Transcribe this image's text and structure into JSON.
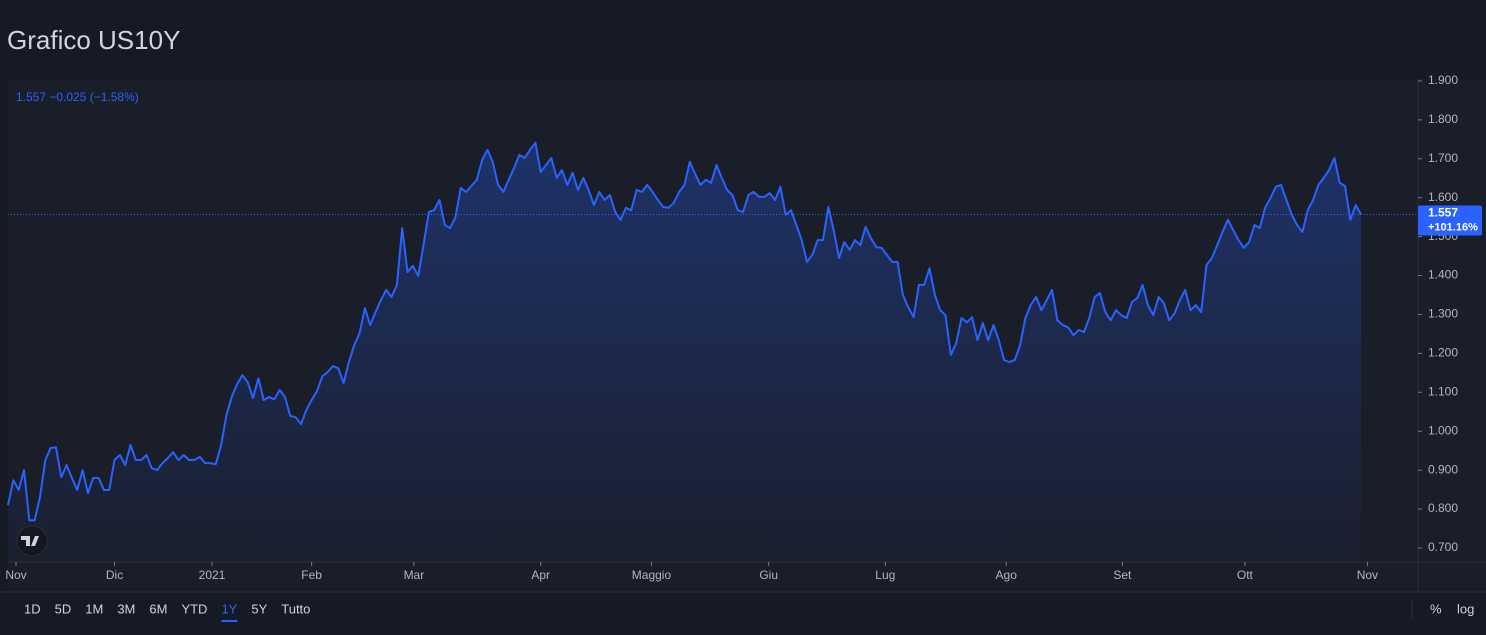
{
  "chart_data": {
    "type": "area",
    "title": "Grafico US10Y",
    "legend_text": "1.557 −0.025 (−1.58%)",
    "price_label": "1.557",
    "change_label": "+101.16%",
    "color": "#2962ff",
    "values": [
      0.81,
      0.874,
      0.849,
      0.9,
      0.771,
      0.771,
      0.831,
      0.926,
      0.957,
      0.959,
      0.882,
      0.913,
      0.88,
      0.849,
      0.9,
      0.841,
      0.88,
      0.88,
      0.849,
      0.849,
      0.926,
      0.939,
      0.913,
      0.965,
      0.926,
      0.926,
      0.939,
      0.905,
      0.9,
      0.918,
      0.931,
      0.946,
      0.926,
      0.939,
      0.926,
      0.926,
      0.934,
      0.918,
      0.918,
      0.915,
      0.964,
      1.041,
      1.088,
      1.121,
      1.144,
      1.126,
      1.085,
      1.136,
      1.08,
      1.088,
      1.082,
      1.106,
      1.088,
      1.039,
      1.036,
      1.018,
      1.054,
      1.08,
      1.103,
      1.141,
      1.152,
      1.167,
      1.162,
      1.124,
      1.178,
      1.221,
      1.252,
      1.316,
      1.273,
      1.306,
      1.337,
      1.363,
      1.345,
      1.376,
      1.522,
      1.409,
      1.425,
      1.399,
      1.478,
      1.563,
      1.568,
      1.594,
      1.53,
      1.522,
      1.55,
      1.625,
      1.615,
      1.63,
      1.646,
      1.697,
      1.723,
      1.692,
      1.633,
      1.615,
      1.646,
      1.676,
      1.71,
      1.702,
      1.723,
      1.741,
      1.666,
      1.684,
      1.702,
      1.651,
      1.671,
      1.633,
      1.664,
      1.62,
      1.651,
      1.62,
      1.581,
      1.615,
      1.594,
      1.607,
      1.563,
      1.543,
      1.574,
      1.568,
      1.62,
      1.615,
      1.633,
      1.615,
      1.594,
      1.576,
      1.574,
      1.587,
      1.615,
      1.633,
      1.692,
      1.661,
      1.633,
      1.646,
      1.638,
      1.684,
      1.651,
      1.62,
      1.607,
      1.568,
      1.563,
      1.607,
      1.615,
      1.602,
      1.602,
      1.612,
      1.594,
      1.628,
      1.556,
      1.568,
      1.53,
      1.491,
      1.435,
      1.453,
      1.491,
      1.491,
      1.576,
      1.517,
      1.445,
      1.486,
      1.466,
      1.491,
      1.478,
      1.525,
      1.496,
      1.473,
      1.471,
      1.453,
      1.435,
      1.435,
      1.35,
      1.319,
      1.293,
      1.376,
      1.376,
      1.419,
      1.35,
      1.311,
      1.298,
      1.196,
      1.226,
      1.291,
      1.28,
      1.293,
      1.234,
      1.278,
      1.234,
      1.273,
      1.234,
      1.183,
      1.178,
      1.183,
      1.221,
      1.291,
      1.324,
      1.345,
      1.311,
      1.337,
      1.363,
      1.285,
      1.273,
      1.267,
      1.247,
      1.26,
      1.255,
      1.291,
      1.345,
      1.355,
      1.306,
      1.285,
      1.311,
      1.298,
      1.291,
      1.332,
      1.342,
      1.376,
      1.324,
      1.298,
      1.345,
      1.329,
      1.285,
      1.303,
      1.337,
      1.363,
      1.311,
      1.324,
      1.306,
      1.427,
      1.445,
      1.478,
      1.512,
      1.543,
      1.517,
      1.491,
      1.471,
      1.486,
      1.53,
      1.522,
      1.574,
      1.599,
      1.628,
      1.633,
      1.594,
      1.556,
      1.53,
      1.512,
      1.568,
      1.594,
      1.633,
      1.651,
      1.671,
      1.702,
      1.638,
      1.63,
      1.543,
      1.581,
      1.557
    ],
    "xlim": [
      0,
      264.7
    ],
    "xticks": [
      {
        "value": 1.5,
        "label": "Nov"
      },
      {
        "value": 20,
        "label": "Dic"
      },
      {
        "value": 38.3,
        "label": "2021"
      },
      {
        "value": 57,
        "label": "Feb"
      },
      {
        "value": 76.2,
        "label": "Mar"
      },
      {
        "value": 100,
        "label": "Apr"
      },
      {
        "value": 120.8,
        "label": "Maggio"
      },
      {
        "value": 142.8,
        "label": "Giu"
      },
      {
        "value": 164.7,
        "label": "Lug"
      },
      {
        "value": 187.4,
        "label": "Ago"
      },
      {
        "value": 209.2,
        "label": "Set"
      },
      {
        "value": 232.2,
        "label": "Ott"
      },
      {
        "value": 255.2,
        "label": "Nov"
      }
    ],
    "ylim": [
      0.664,
      1.905
    ],
    "yticks": [
      {
        "value": 0.7,
        "label": "0.700"
      },
      {
        "value": 0.8,
        "label": "0.800"
      },
      {
        "value": 0.9,
        "label": "0.900"
      },
      {
        "value": 1.0,
        "label": "1.000"
      },
      {
        "value": 1.1,
        "label": "1.100"
      },
      {
        "value": 1.2,
        "label": "1.200"
      },
      {
        "value": 1.3,
        "label": "1.300"
      },
      {
        "value": 1.4,
        "label": "1.400"
      },
      {
        "value": 1.5,
        "label": "1.500"
      },
      {
        "value": 1.6,
        "label": "1.600"
      },
      {
        "value": 1.7,
        "label": "1.700"
      },
      {
        "value": 1.8,
        "label": "1.800"
      },
      {
        "value": 1.9,
        "label": "1.900"
      }
    ]
  },
  "toolbar": {
    "ranges": [
      "1D",
      "5D",
      "1M",
      "3M",
      "6M",
      "YTD",
      "1Y",
      "5Y",
      "Tutto"
    ],
    "active": "1Y",
    "percent": "%",
    "log": "log"
  }
}
